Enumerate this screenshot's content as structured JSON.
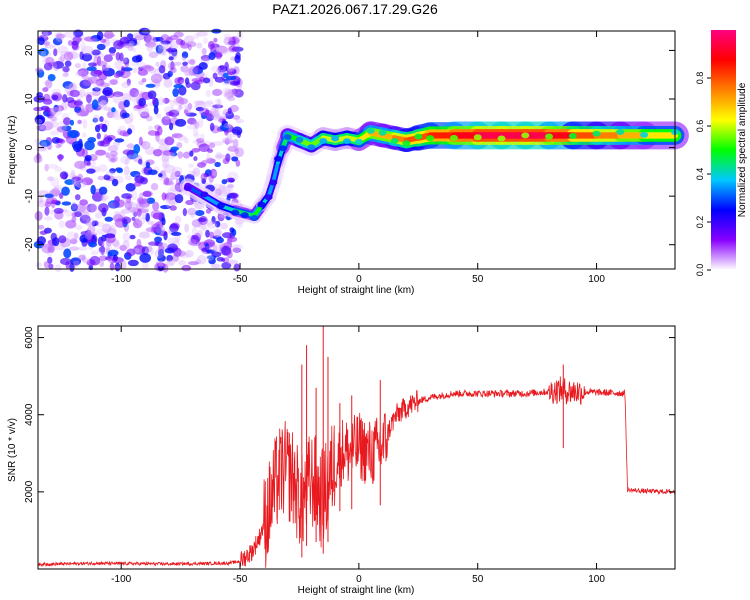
{
  "title": "PAZ1.2026.067.17.29.G26",
  "chart_data": [
    {
      "type": "heatmap",
      "panel": "spectrogram",
      "xlabel": "Height of straight line (km)",
      "ylabel": "Frequency (Hz)",
      "xlim": [
        -135,
        133
      ],
      "ylim": [
        -25,
        24
      ],
      "x_ticks": [
        -100,
        -50,
        0,
        50,
        100
      ],
      "x_tick_labels": [
        "-100",
        "-50",
        "0",
        "50",
        "100"
      ],
      "y_ticks": [
        -20,
        -10,
        0,
        10,
        20
      ],
      "y_tick_labels": [
        "-20",
        "-10",
        "0",
        "10",
        "20"
      ],
      "noise_region_x": [
        -135,
        -50
      ],
      "ridge": {
        "x": [
          -72,
          -65,
          -58,
          -52,
          -48,
          -44,
          -41,
          -38,
          -36,
          -34,
          -32,
          -30,
          -25,
          -20,
          -15,
          -10,
          -5,
          0,
          5,
          10,
          15,
          20,
          25,
          30,
          40,
          50,
          60,
          70,
          80,
          90,
          100,
          110,
          120,
          133
        ],
        "y": [
          -8,
          -10,
          -12,
          -13,
          -13.5,
          -14,
          -12,
          -10,
          -7,
          -3,
          0,
          2.5,
          1.5,
          0.5,
          2,
          1.5,
          2,
          1.5,
          3,
          2.5,
          2,
          1.5,
          2,
          2.5,
          2.5,
          2.5,
          2.5,
          2.5,
          2.5,
          2.5,
          2.5,
          2.5,
          2.5,
          2.5
        ],
        "amplitude": [
          0.3,
          0.35,
          0.4,
          0.45,
          0.45,
          0.5,
          0.4,
          0.35,
          0.35,
          0.4,
          0.45,
          0.5,
          0.55,
          0.55,
          0.6,
          0.6,
          0.6,
          0.65,
          0.7,
          0.7,
          0.75,
          0.8,
          0.8,
          0.85,
          0.9,
          0.95,
          0.95,
          0.95,
          0.9,
          0.8,
          0.75,
          0.7,
          0.65,
          0.65
        ],
        "width_hz": [
          1.5,
          1.5,
          1.5,
          1.5,
          1.5,
          1.5,
          1.5,
          1.5,
          1.5,
          1.5,
          1.8,
          2,
          2,
          2,
          2,
          2,
          2,
          2,
          2.2,
          2.2,
          2.2,
          2.2,
          2.4,
          2.5,
          2.6,
          2.6,
          2.6,
          2.6,
          2.6,
          2.6,
          2.6,
          2.6,
          2.6,
          2.6
        ]
      },
      "colorbar": {
        "label": "Normalized spectral amplitude",
        "range": [
          0,
          1
        ],
        "ticks": [
          0,
          0.2,
          0.4,
          0.6,
          0.8
        ],
        "tick_labels": [
          "0.0",
          "0.2",
          "0.4",
          "0.6",
          "0.8"
        ],
        "colors": [
          "#ffffff",
          "#8800ff",
          "#0000ff",
          "#00c8ff",
          "#00ff00",
          "#ffff00",
          "#ff8000",
          "#ff0000",
          "#ff0080"
        ]
      }
    },
    {
      "type": "line",
      "panel": "snr",
      "xlabel": "Height of straight line (km)",
      "ylabel": "SNR (10 * v/v)",
      "xlim": [
        -135,
        133
      ],
      "ylim": [
        0,
        6300
      ],
      "x_ticks": [
        -100,
        -50,
        0,
        50,
        100
      ],
      "x_tick_labels": [
        "-100",
        "-50",
        "0",
        "50",
        "100"
      ],
      "y_ticks": [
        2000,
        4000,
        6000
      ],
      "y_tick_labels": [
        "2000",
        "4000",
        "6000"
      ],
      "series": [
        {
          "name": "SNR",
          "color": "#e8191e",
          "x": [
            -135,
            -110,
            -80,
            -55,
            -50,
            -45,
            -42,
            -38,
            -35,
            -32,
            -30,
            -28,
            -26,
            -24,
            -22,
            -20,
            -18,
            -16,
            -14,
            -12,
            -10,
            -8,
            -6,
            -4,
            -2,
            0,
            2,
            4,
            6,
            8,
            10,
            12,
            14,
            16,
            18,
            20,
            25,
            30,
            40,
            50,
            60,
            70,
            80,
            85,
            88,
            92,
            100,
            110,
            112,
            113,
            120,
            133
          ],
          "y": [
            120,
            150,
            130,
            150,
            200,
            450,
            800,
            1500,
            2200,
            2600,
            2500,
            2400,
            2000,
            1700,
            2100,
            2300,
            2200,
            1800,
            2000,
            2400,
            2800,
            3000,
            3100,
            3000,
            3100,
            3200,
            3100,
            3000,
            3000,
            3100,
            3200,
            3500,
            3800,
            4000,
            4100,
            4200,
            4350,
            4450,
            4550,
            4550,
            4550,
            4550,
            4600,
            4650,
            4600,
            4600,
            4580,
            4560,
            4550,
            2050,
            2020,
            2000
          ]
        }
      ],
      "spikes": [
        {
          "x": -24,
          "y": 5300
        },
        {
          "x": -22,
          "y": 5800
        },
        {
          "x": -18,
          "y": 4700
        },
        {
          "x": -15,
          "y": 6400
        },
        {
          "x": -13,
          "y": 5500
        },
        {
          "x": -8,
          "y": 4300
        },
        {
          "x": -3,
          "y": 4500
        },
        {
          "x": 9,
          "y": 4900
        },
        {
          "x": 86,
          "y": 5300
        }
      ]
    }
  ]
}
